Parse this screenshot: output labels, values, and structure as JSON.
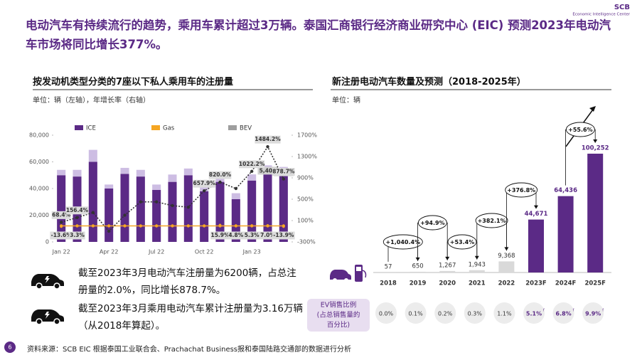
{
  "header": {
    "title": "电动汽车有持续流行的趋势，乘用车累计超过3万辆。泰国汇商银行经济商业研究中心 (EIC) 预测2023年电动汽车市场将同比增长377%。",
    "logo": "SCB",
    "logo_sub": "Economic Intelligence Center"
  },
  "chart_data": [
    {
      "type": "bar",
      "title": "按发动机类型分类的7座以下私人乘用车的注册量",
      "subtitle": "单位：辆（左轴），年增长率（右轴）",
      "categories": [
        "Jan 22",
        null,
        null,
        "Apr 22",
        null,
        null,
        "Jul 22",
        null,
        null,
        "Oct 22",
        null,
        null,
        "Jan 23",
        null,
        null
      ],
      "series": [
        {
          "name": "ICE",
          "type": "bar",
          "color": "#5b2a86",
          "values": [
            50000,
            49000,
            60000,
            40000,
            51000,
            49000,
            39000,
            45000,
            50000,
            38000,
            45000,
            32000,
            46000,
            52000,
            50000
          ]
        },
        {
          "name": "Gas",
          "type": "line",
          "axis": "y2",
          "color": "#f5a623",
          "markers": true,
          "values": [
            0,
            0,
            0,
            0,
            0,
            0,
            0,
            0,
            0,
            0,
            0,
            0,
            0,
            0,
            0
          ]
        },
        {
          "name": "BEV",
          "type": "bar",
          "color": "#cdbde3",
          "values": [
            4000,
            5000,
            9000,
            3000,
            4500,
            5000,
            4000,
            5500,
            5000,
            7000,
            5500,
            4500,
            4600,
            5402,
            6205
          ],
          "value_labels": [
            null,
            null,
            null,
            null,
            null,
            null,
            null,
            null,
            null,
            null,
            null,
            null,
            null,
            "5,402",
            "6,205"
          ]
        },
        {
          "type": "line",
          "axis": "y2",
          "color": "#333333",
          "dash": true,
          "markers": true,
          "values": [
            68.4,
            156.4,
            250,
            -100,
            200,
            450,
            450,
            380,
            350,
            657.9,
            820.0,
            700,
            1022.2,
            1484.2,
            878.7
          ],
          "value_labels": [
            "68.4%",
            "156.4%",
            null,
            null,
            null,
            null,
            null,
            null,
            null,
            "657.9%",
            "820.0%",
            null,
            "1022.2%",
            "1484.2%",
            "878.7%"
          ]
        },
        {
          "type": "scatter",
          "axis": "y2",
          "color": "#f5a623",
          "values": [
            -13.6,
            3.3,
            null,
            null,
            null,
            null,
            null,
            null,
            null,
            null,
            15.9,
            4.8,
            5.3,
            7.0,
            -13.9
          ],
          "value_labels": [
            "-13.6%",
            "3.3%",
            null,
            null,
            null,
            null,
            null,
            null,
            null,
            null,
            "15.9%",
            "4.8%",
            "5.3%",
            "7.0%",
            "-13.9%"
          ]
        }
      ],
      "ylim": [
        0,
        80000
      ],
      "yticks": [
        0,
        {
          "value": 20000,
          "label": "20,000"
        },
        {
          "value": 40000,
          "label": "40,000"
        },
        {
          "value": 60000,
          "label": "60,000"
        },
        {
          "value": 80000,
          "label": "80,000"
        }
      ],
      "y2lim": [
        -300,
        1700
      ],
      "y2ticks": [
        {
          "value": -300,
          "label": "-300%"
        },
        {
          "value": 100,
          "label": "100%"
        },
        {
          "value": 500,
          "label": "500%"
        },
        {
          "value": 900,
          "label": "900%"
        },
        {
          "value": 1300,
          "label": "1300%"
        },
        {
          "value": 1700,
          "label": "1700%"
        }
      ]
    },
    {
      "type": "bar",
      "title": "新注册电动汽车数量及预测（2018-2025年）",
      "subtitle": "单位：辆",
      "categories": [
        "2018",
        "2019",
        "2020",
        "2021",
        "2022",
        "2023F",
        "2024F",
        "2025F"
      ],
      "values": [
        57,
        650,
        1267,
        1943,
        9368,
        44671,
        64436,
        100252
      ],
      "value_labels": [
        "57",
        "650",
        "1,267",
        "1,943",
        "9,368",
        "44,671",
        "64,436",
        "100,252"
      ],
      "colors": [
        "#d9d9d9",
        "#d9d9d9",
        "#d9d9d9",
        "#d9d9d9",
        "#d9d9d9",
        "#5b2a86",
        "#5b2a86",
        "#5b2a86"
      ],
      "growth": [
        "+1,040.4%",
        "+94.9%",
        "+53.4%",
        "+382.1%",
        "+376.8%",
        null,
        "+55.6%"
      ]
    }
  ],
  "ev_share": {
    "label": [
      "EV销售比例",
      "(占总销售量的",
      "百分比)"
    ],
    "values": [
      0.0,
      0.1,
      0.2,
      0.3,
      1.1,
      5.1,
      6.8,
      9.9
    ],
    "value_labels": [
      "0.0%",
      "0.1%",
      "0.2%",
      "0.3%",
      "1.1%",
      "5.1%",
      "6.8%",
      "9.9%"
    ],
    "marks": [
      null,
      null,
      null,
      null,
      null,
      "f",
      "f",
      "f"
    ]
  },
  "bullets": [
    "截至2023年3月电动汽车注册量为6200辆，占总注册量的2.0%，同比增长878.7%。",
    "截至2023年3月乘用电动汽车累计注册量为3.16万辆（从2018年算起）。"
  ],
  "footer": {
    "page": "6",
    "source": "资料来源：SCB EIC 根据泰国工业联合会、Prachachat Business报和泰国陆路交通部的数据进行分析"
  }
}
